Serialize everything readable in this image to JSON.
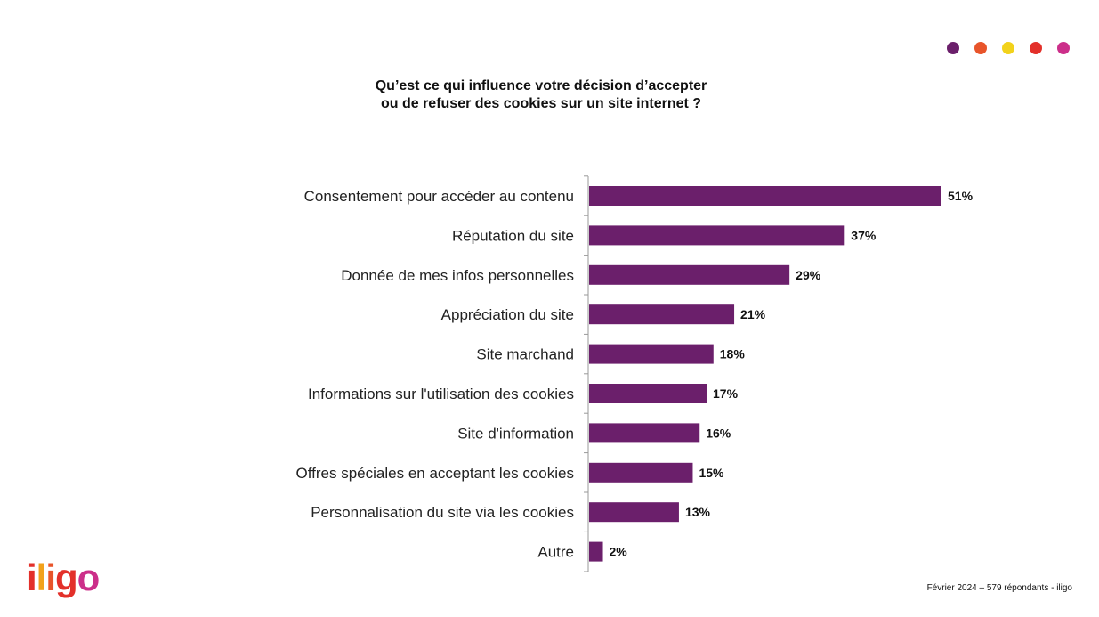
{
  "header": {
    "title_line1": "Qu’est ce qui influence votre décision d’accepter",
    "title_line2": "ou de refuser des cookies sur un site internet ?",
    "dot_colors": [
      "#6b1f6b",
      "#e8542a",
      "#f2d21b",
      "#e3302a",
      "#cc2f8a"
    ]
  },
  "chart_data": {
    "type": "bar",
    "orientation": "horizontal",
    "categories": [
      "Consentement pour accéder au contenu",
      "Réputation du site",
      "Donnée de mes infos personnelles",
      "Appréciation du site",
      "Site marchand",
      "Informations sur l'utilisation des cookies",
      "Site d'information",
      "Offres spéciales en acceptant les cookies",
      "Personnalisation du site via les cookies",
      "Autre"
    ],
    "values": [
      51,
      37,
      29,
      21,
      18,
      17,
      16,
      15,
      13,
      2
    ],
    "value_labels": [
      "51%",
      "37%",
      "29%",
      "21%",
      "18%",
      "17%",
      "16%",
      "15%",
      "13%",
      "2%"
    ],
    "unit": "%",
    "bar_color": "#6b1f6b",
    "xlim": [
      0,
      51
    ],
    "grid": false
  },
  "footer": {
    "source": "Février 2024 – 579 répondants - iligo",
    "logo_letters": [
      "i",
      "l",
      "i",
      "g",
      "o"
    ],
    "logo_colors": [
      "#e3302a",
      "#f2a21b",
      "#e8542a",
      "#e3302a",
      "#cc2f8a"
    ]
  }
}
